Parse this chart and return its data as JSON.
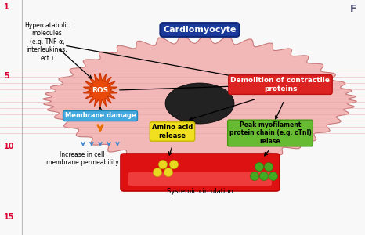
{
  "cardiomyocyte_label": "Cardiomyocyte",
  "cell_color": "#f2b8b8",
  "cell_edge_color": "#c87878",
  "cell_stripe_color": "#e8a0a0",
  "nucleus_color": "#222222",
  "blood_vessel_color": "#dd1111",
  "blood_vessel_edge": "#bb0000",
  "ros_label": "ROS",
  "ros_color": "#e84a0c",
  "ros_edge": "#cc3300",
  "membrane_damage_label": "Membrane damage",
  "membrane_damage_color": "#44aadd",
  "membrane_damage_edge": "#2288bb",
  "demolition_label": "Demolition of contractile\nproteins",
  "demolition_color": "#dd2222",
  "demolition_edge": "#bb1111",
  "amino_acid_label": "Amino acid\nrelease",
  "amino_acid_color": "#f0e020",
  "amino_acid_edge": "#c8b800",
  "peak_label": "Peak myofilament\nprotein chain (e.g. cTnI)\nrelase",
  "peak_color": "#66bb33",
  "peak_edge": "#449911",
  "hypercatabolic_label": "Hypercatabolic\nmolecules\n(e.g. TNF-α,\ninterleukines,\nect.)",
  "increase_label": "Increase in cell\nmembrane permeability",
  "systemic_label": "Systemic circulation",
  "figure_label": "F",
  "line_numbers": [
    "1",
    "5",
    "10",
    "15"
  ],
  "bg_color": "#f8f8f8",
  "arrow_color": "#111111",
  "orange_arrow": "#e87000",
  "blue_arrow": "#4488cc",
  "dot_yellow": "#e8d820",
  "dot_yellow_edge": "#bbaa00",
  "dot_green": "#44aa22",
  "dot_green_edge": "#337711"
}
